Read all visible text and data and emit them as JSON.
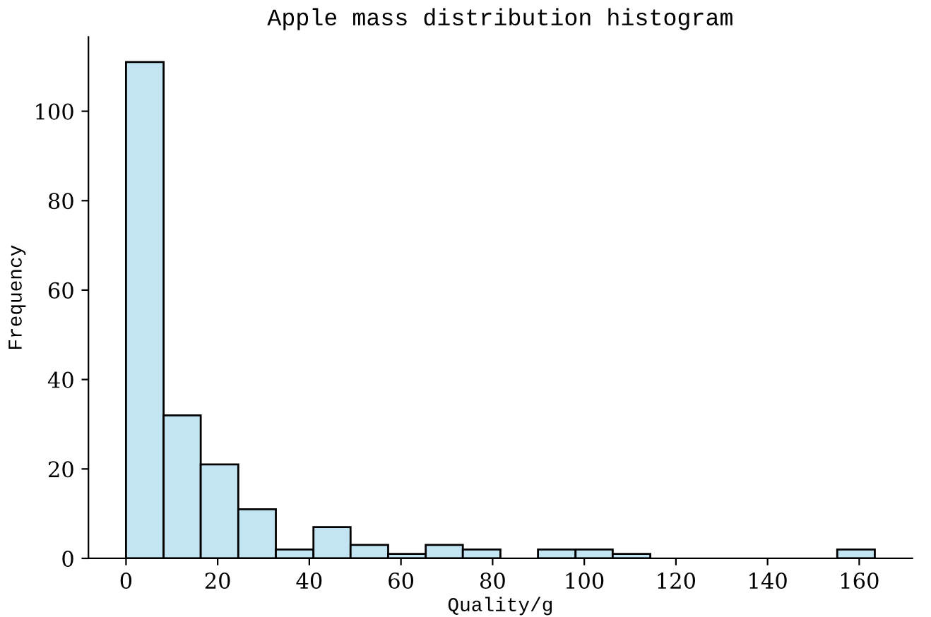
{
  "chart_data": {
    "type": "histogram",
    "title": "Apple mass distribution histogram",
    "xlabel": "Quality/g",
    "ylabel": "Frequency",
    "bins": [
      0,
      8.2,
      16.3,
      24.5,
      32.7,
      40.9,
      49.0,
      57.2,
      65.4,
      73.5,
      81.7,
      89.9,
      98.1,
      106.2,
      114.4,
      155.2,
      163.4
    ],
    "values": [
      111,
      32,
      21,
      11,
      2,
      7,
      3,
      1,
      3,
      2,
      0,
      2,
      2,
      1,
      0,
      2
    ],
    "color": "#c2e4f3",
    "xlim": [
      -8.2,
      171.6
    ],
    "ylim": [
      0,
      116.6
    ],
    "xticks": [
      0,
      20,
      40,
      60,
      80,
      100,
      120,
      140,
      160
    ],
    "yticks": [
      0,
      20,
      40,
      60,
      80,
      100
    ],
    "grid": false
  }
}
